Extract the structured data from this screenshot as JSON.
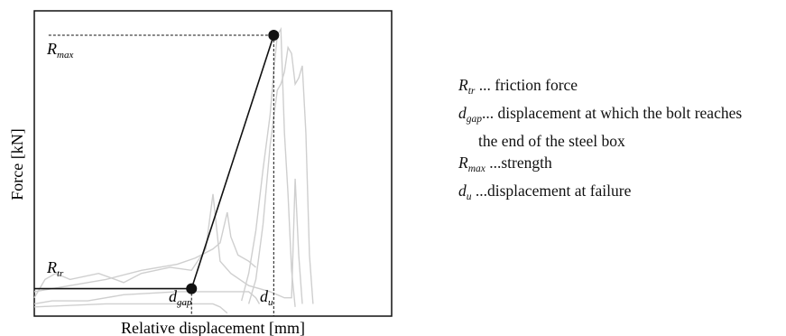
{
  "chart_data": {
    "type": "line",
    "title": "",
    "xlabel": "Relative displacement [mm]",
    "ylabel": "Force [kN]",
    "grid": false,
    "axis_ticks": false,
    "xlim": [
      0,
      100
    ],
    "ylim": [
      0,
      100
    ],
    "idealized_curve": {
      "points": [
        {
          "x": 0,
          "y": 9
        },
        {
          "x": 44,
          "y": 9
        },
        {
          "x": 67,
          "y": 92
        }
      ],
      "point_markers": [
        "d_gap",
        "R_max"
      ]
    },
    "reference_lines": {
      "R_max_level": {
        "y": 92,
        "x_from": 4,
        "x_to": 67
      },
      "d_gap_drop": {
        "x": 44,
        "y_from": 9,
        "y_to": 0
      },
      "d_u_drop": {
        "x": 67,
        "y_from": 92,
        "y_to": 0
      }
    },
    "annotations": {
      "R_max": {
        "base": "R",
        "sub": "max"
      },
      "R_tr": {
        "base": "R",
        "sub": "tr"
      },
      "d_gap": {
        "base": "d",
        "sub": "gap"
      },
      "d_u": {
        "base": "d",
        "sub": "u"
      }
    },
    "test_curves": [
      {
        "points": [
          [
            0,
            6
          ],
          [
            3,
            12
          ],
          [
            6,
            14
          ],
          [
            10,
            12
          ],
          [
            18,
            14
          ],
          [
            25,
            11
          ],
          [
            30,
            14
          ],
          [
            38,
            16
          ],
          [
            44,
            15
          ],
          [
            48,
            22
          ],
          [
            50,
            40
          ],
          [
            52,
            18
          ],
          [
            55,
            14
          ],
          [
            60,
            10
          ],
          [
            66,
            8
          ],
          [
            70,
            6
          ],
          [
            72,
            6
          ],
          [
            73,
            45
          ],
          [
            74,
            20
          ],
          [
            75,
            4
          ]
        ]
      },
      {
        "points": [
          [
            0,
            8
          ],
          [
            10,
            10
          ],
          [
            20,
            12
          ],
          [
            30,
            15
          ],
          [
            40,
            17
          ],
          [
            45,
            19
          ],
          [
            50,
            22
          ],
          [
            52,
            24
          ],
          [
            54,
            34
          ],
          [
            55,
            26
          ],
          [
            57,
            20
          ],
          [
            60,
            18
          ],
          [
            62,
            16
          ]
        ]
      },
      {
        "points": [
          [
            0,
            4
          ],
          [
            5,
            5
          ],
          [
            15,
            5
          ],
          [
            25,
            7
          ],
          [
            40,
            8
          ],
          [
            55,
            8
          ],
          [
            60,
            8
          ],
          [
            62,
            6
          ],
          [
            63,
            4
          ]
        ]
      },
      {
        "points": [
          [
            58,
            5
          ],
          [
            60,
            14
          ],
          [
            62,
            28
          ],
          [
            64,
            48
          ],
          [
            66,
            66
          ],
          [
            67,
            80
          ],
          [
            68,
            92
          ],
          [
            69,
            94
          ],
          [
            70,
            60
          ],
          [
            71,
            40
          ],
          [
            72,
            15
          ],
          [
            73,
            3
          ]
        ]
      },
      {
        "points": [
          [
            60,
            4
          ],
          [
            62,
            12
          ],
          [
            64,
            30
          ],
          [
            66,
            56
          ],
          [
            68,
            74
          ],
          [
            69,
            76
          ],
          [
            70,
            80
          ],
          [
            71,
            88
          ],
          [
            72,
            86
          ],
          [
            73,
            76
          ],
          [
            74,
            78
          ],
          [
            75,
            82
          ],
          [
            76,
            60
          ],
          [
            77,
            20
          ],
          [
            78,
            4
          ]
        ]
      },
      {
        "points": [
          [
            0,
            3
          ],
          [
            20,
            4
          ],
          [
            40,
            4
          ],
          [
            50,
            4
          ],
          [
            52,
            3
          ],
          [
            54,
            1
          ]
        ]
      }
    ]
  },
  "legend": {
    "items": [
      {
        "sym": "R",
        "sub": "tr",
        "desc": " ... friction force"
      },
      {
        "sym": "d",
        "sub": "gap",
        "desc": "... displacement at which the bolt reaches"
      },
      {
        "cont": "the end of the steel box"
      },
      {
        "sym": "R",
        "sub": "max",
        "desc": " ...strength"
      },
      {
        "sym": "d",
        "sub": "u",
        "desc": " ...displacement at failure"
      }
    ]
  }
}
